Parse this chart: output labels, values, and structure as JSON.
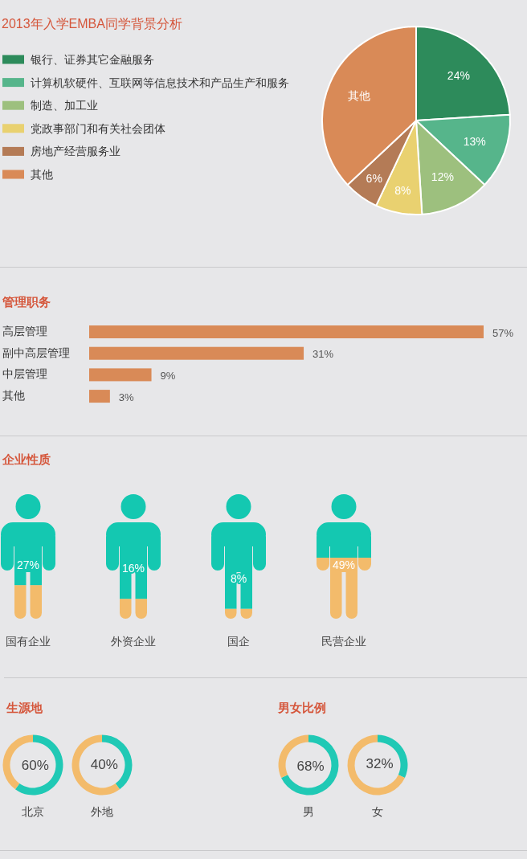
{
  "chart_data": [
    {
      "type": "pie",
      "title": "2013年入学EMBA同学背景分析",
      "categories": [
        "银行、证券其它金融服务",
        "计算机软硬件、互联网等信息技术和产品生产和服务",
        "制造、加工业",
        "党政事部门和有关社会团体",
        "房地产经营服务业",
        "其他"
      ],
      "values": [
        24,
        13,
        12,
        8,
        6,
        37
      ],
      "colors": [
        "#2d8b5b",
        "#56b58b",
        "#9dc07e",
        "#e9d170",
        "#b47b56",
        "#d98a57"
      ],
      "value_labels": [
        "24%",
        "13%",
        "12%",
        "8%",
        "6%",
        "其他"
      ],
      "legend": "left"
    },
    {
      "type": "bar",
      "orientation": "horizontal",
      "title": "管理职务",
      "categories": [
        "高层管理",
        "副中高层管理",
        "中层管理",
        "其他"
      ],
      "values": [
        57,
        31,
        9,
        3
      ],
      "color": "#d98a57",
      "value_labels": [
        "57%",
        "31%",
        "9%",
        "3%"
      ]
    },
    {
      "type": "bar",
      "stacked": true,
      "title": "企业性质",
      "categories": [
        "国有企业",
        "外资企业",
        "国企",
        "民营企业"
      ],
      "series": [
        {
          "color": "#f3bb6b",
          "values": [
            27,
            16,
            8,
            49
          ],
          "value_labels": [
            "27%",
            "16%",
            "8%",
            "49%"
          ]
        },
        {
          "color": "#14c8b1",
          "values": [
            73,
            84,
            92,
            51
          ]
        }
      ]
    },
    {
      "type": "donut",
      "title": "生源地",
      "xlabel": "北京",
      "categories": [
        null,
        null
      ],
      "values": [
        60,
        40
      ],
      "colors": [
        "#20c9b5",
        "#f3bb6b"
      ],
      "value_labels": [
        "60%",
        null
      ]
    },
    {
      "type": "donut",
      "xlabel": "外地",
      "categories": [
        null,
        null
      ],
      "values": [
        40,
        60
      ],
      "colors": [
        "#20c9b5",
        "#f3bb6b"
      ],
      "value_labels": [
        "40%",
        null
      ]
    },
    {
      "type": "donut",
      "title": "男女比例",
      "xlabel": "男",
      "categories": [
        null,
        null
      ],
      "values": [
        68,
        32
      ],
      "colors": [
        "#20c9b5",
        "#f3bb6b"
      ],
      "value_labels": [
        "68%",
        null
      ]
    },
    {
      "type": "donut",
      "xlabel": "女",
      "categories": [
        null,
        null
      ],
      "values": [
        32,
        68
      ],
      "colors": [
        "#20c9b5",
        "#f3bb6b"
      ],
      "value_labels": [
        "32%",
        null
      ]
    }
  ]
}
